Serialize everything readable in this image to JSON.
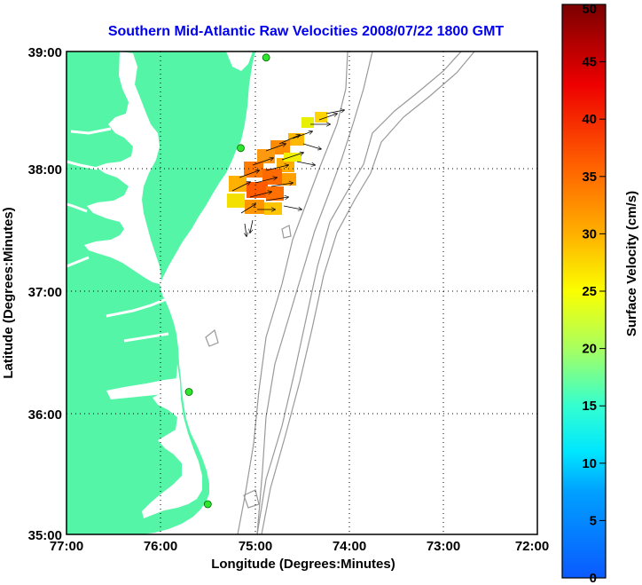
{
  "title": "Southern Mid-Atlantic Raw Velocities 2008/07/22 1800 GMT",
  "xlabel": "Longitude (Degrees:Minutes)",
  "ylabel": "Latitude (Degrees:Minutes)",
  "x_ticks": [
    "77:00",
    "76:00",
    "75:00",
    "74:00",
    "73:00",
    "72:00"
  ],
  "y_ticks": [
    "39:00",
    "38:00",
    "37:00",
    "36:00",
    "35:00"
  ],
  "colorbar": {
    "label": "Surface Velocity (cm/s)",
    "ticks": [
      "0",
      "5",
      "10",
      "15",
      "20",
      "25",
      "30",
      "35",
      "40",
      "45",
      "50"
    ],
    "range": [
      0,
      50
    ]
  },
  "colors": {
    "land": "#55f5a8",
    "title": "#0000ee",
    "contour": "#999999",
    "station": "#2ee62e"
  },
  "stations": [
    {
      "lon": -74.88,
      "lat": 38.95
    },
    {
      "lon": -75.15,
      "lat": 38.2
    },
    {
      "lon": -75.7,
      "lat": 36.18
    },
    {
      "lon": -75.5,
      "lat": 35.25
    }
  ]
}
